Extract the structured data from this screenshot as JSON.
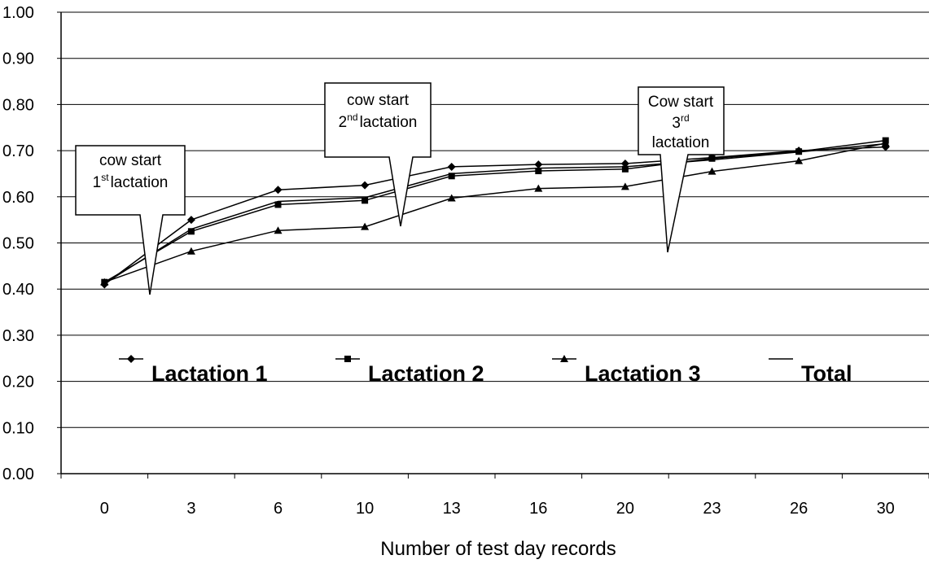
{
  "chart_data": {
    "type": "line",
    "title": "",
    "xlabel": "Number of test day records",
    "ylabel": "",
    "categories": [
      "0",
      "3",
      "6",
      "10",
      "13",
      "16",
      "20",
      "23",
      "26",
      "30"
    ],
    "ylim": [
      0,
      1
    ],
    "yticks": [
      "0.00",
      "0.10",
      "0.20",
      "0.30",
      "0.40",
      "0.50",
      "0.60",
      "0.70",
      "0.80",
      "0.90",
      "1.00"
    ],
    "grid": true,
    "legend_position": "inside-bottom",
    "series": [
      {
        "name": "Lactation 1",
        "marker": "diamond",
        "x": [
          0,
          1,
          2,
          3,
          4,
          5,
          6,
          7,
          8,
          9
        ],
        "values": [
          0.41,
          0.55,
          0.615,
          0.625,
          0.665,
          0.67,
          0.672,
          0.685,
          0.7,
          0.708
        ]
      },
      {
        "name": "Lactation 2",
        "marker": "square",
        "x": [
          0,
          1,
          2,
          3,
          4,
          5,
          6,
          7,
          8,
          9
        ],
        "values": [
          0.415,
          0.525,
          0.583,
          0.592,
          0.645,
          0.656,
          0.66,
          0.683,
          0.698,
          0.722
        ]
      },
      {
        "name": "Lactation 3",
        "marker": "triangle",
        "x": [
          0,
          1,
          2,
          3,
          4,
          5,
          6,
          7,
          8,
          9
        ],
        "values": [
          0.415,
          0.482,
          0.527,
          0.535,
          0.597,
          0.618,
          0.622,
          0.655,
          0.678,
          0.716
        ]
      },
      {
        "name": "Total",
        "marker": "none",
        "x": [
          0,
          1,
          2,
          3,
          4,
          5,
          6,
          7,
          8,
          9
        ],
        "values": [
          0.412,
          0.53,
          0.59,
          0.598,
          0.65,
          0.662,
          0.665,
          0.68,
          0.697,
          0.715
        ]
      }
    ],
    "annotations": [
      {
        "text": "cow start",
        "ordinal": "1",
        "suffix": "st",
        "text2": "lactation",
        "pointer_x": 0.52,
        "pointer_y": 0.44
      },
      {
        "text": "cow start",
        "ordinal": "2",
        "suffix": "nd",
        "text2": "lactation",
        "pointer_x": 3.42,
        "pointer_y": 0.59
      },
      {
        "text": "Cow start",
        "ordinal": "3",
        "suffix": "rd",
        "text3": "lactation",
        "pointer_x": 6.6,
        "pointer_y": 0.61
      }
    ]
  }
}
